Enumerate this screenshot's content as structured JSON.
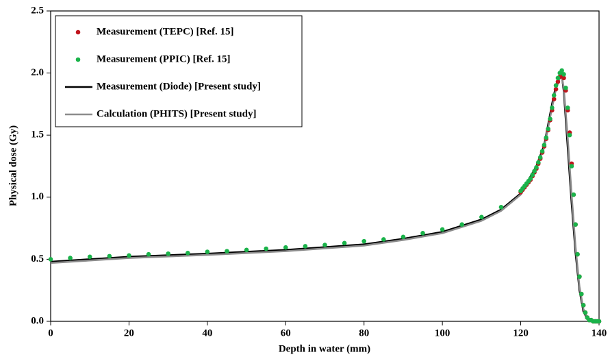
{
  "chart_data": {
    "type": "line",
    "xlabel": "Depth in water (mm)",
    "ylabel": "Physical dose (Gy)",
    "xlim": [
      0,
      140
    ],
    "xticks": [
      0,
      20,
      40,
      60,
      80,
      100,
      120,
      140
    ],
    "ylim": [
      0,
      2.5
    ],
    "yticks": [
      {
        "value": 0,
        "label": "0.0"
      },
      0.5,
      {
        "value": 1,
        "label": "1.0"
      },
      1.5,
      {
        "value": 2,
        "label": "2.0"
      },
      2.5
    ],
    "legend": "upper left",
    "series": [
      {
        "name": "Measurement (TEPC) [Ref. 15]",
        "kind": "scatter",
        "color": "#c0151d",
        "x": [
          120,
          120.5,
          121,
          121.5,
          122,
          122.5,
          123,
          123.5,
          124,
          124.5,
          125,
          125.5,
          126,
          126.5,
          127,
          127.5,
          128,
          128.5,
          129,
          129.5,
          130,
          130.5,
          131,
          131.5,
          132,
          132.5,
          133,
          133.5,
          134,
          134.5,
          135,
          135.5,
          136,
          136.5,
          137,
          137.5,
          138,
          138.5,
          139,
          139.5,
          140
        ],
        "values": [
          1.04,
          1.06,
          1.08,
          1.1,
          1.12,
          1.14,
          1.17,
          1.2,
          1.23,
          1.27,
          1.31,
          1.36,
          1.41,
          1.47,
          1.54,
          1.62,
          1.7,
          1.79,
          1.87,
          1.93,
          1.97,
          1.98,
          1.96,
          1.86,
          1.7,
          1.52,
          1.27,
          1.02,
          0.78,
          0.54,
          0.36,
          0.22,
          0.13,
          0.07,
          0.03,
          0.01,
          0.01,
          0,
          0,
          0,
          0
        ]
      },
      {
        "name": "Measurement (PPIC) [Ref. 15]",
        "kind": "scatter",
        "color": "#1ab34a",
        "x": [
          0,
          5,
          10,
          15,
          20,
          25,
          30,
          35,
          40,
          45,
          50,
          55,
          60,
          65,
          70,
          75,
          80,
          85,
          90,
          95,
          100,
          105,
          110,
          115,
          120,
          120.5,
          121,
          121.5,
          122,
          122.5,
          123,
          123.5,
          124,
          124.5,
          125,
          125.5,
          126,
          126.5,
          127,
          127.5,
          128,
          128.5,
          129,
          129.5,
          130,
          130.5,
          131,
          131.5,
          132,
          132.5,
          133,
          133.5,
          134,
          134.5,
          135,
          135.5,
          136,
          136.5,
          137,
          137.5,
          138,
          138.5,
          139,
          139.5,
          140
        ],
        "values": [
          0.5,
          0.51,
          0.52,
          0.525,
          0.53,
          0.54,
          0.545,
          0.55,
          0.56,
          0.565,
          0.575,
          0.585,
          0.595,
          0.605,
          0.615,
          0.63,
          0.645,
          0.66,
          0.68,
          0.71,
          0.74,
          0.78,
          0.84,
          0.92,
          1.05,
          1.07,
          1.09,
          1.11,
          1.13,
          1.15,
          1.18,
          1.21,
          1.24,
          1.28,
          1.32,
          1.37,
          1.42,
          1.48,
          1.55,
          1.63,
          1.72,
          1.82,
          1.9,
          1.96,
          2,
          2.02,
          1.99,
          1.88,
          1.72,
          1.5,
          1.25,
          1.02,
          0.78,
          0.54,
          0.36,
          0.22,
          0.13,
          0.07,
          0.03,
          0.01,
          0.01,
          0,
          0,
          0,
          0
        ]
      },
      {
        "name": "Measurement (Diode) [Present study]",
        "kind": "line",
        "color": "#000000",
        "x": [
          0,
          10,
          20,
          40,
          60,
          80,
          90,
          100,
          110,
          115,
          120,
          124,
          126,
          128,
          129,
          130,
          130.5,
          131,
          132,
          133,
          134,
          135,
          136,
          137,
          138,
          140
        ],
        "values": [
          0.48,
          0.5,
          0.52,
          0.545,
          0.575,
          0.62,
          0.665,
          0.72,
          0.82,
          0.9,
          1.03,
          1.25,
          1.42,
          1.75,
          1.9,
          1.99,
          1.98,
          1.85,
          1.4,
          0.95,
          0.55,
          0.25,
          0.08,
          0.02,
          0,
          0
        ]
      },
      {
        "name": "Calculation (PHITS) [Present study]",
        "kind": "line",
        "color": "#8c8c8c",
        "x": [
          0,
          10,
          20,
          40,
          60,
          80,
          90,
          100,
          110,
          115,
          120,
          124,
          126,
          128,
          129,
          130,
          130.5,
          131,
          132,
          133,
          134,
          135,
          136,
          137,
          138,
          140
        ],
        "values": [
          0.47,
          0.49,
          0.51,
          0.535,
          0.565,
          0.61,
          0.655,
          0.71,
          0.81,
          0.89,
          1.02,
          1.23,
          1.4,
          1.72,
          1.87,
          1.96,
          1.97,
          1.88,
          1.48,
          1.02,
          0.6,
          0.28,
          0.1,
          0.03,
          0,
          0
        ]
      }
    ]
  }
}
